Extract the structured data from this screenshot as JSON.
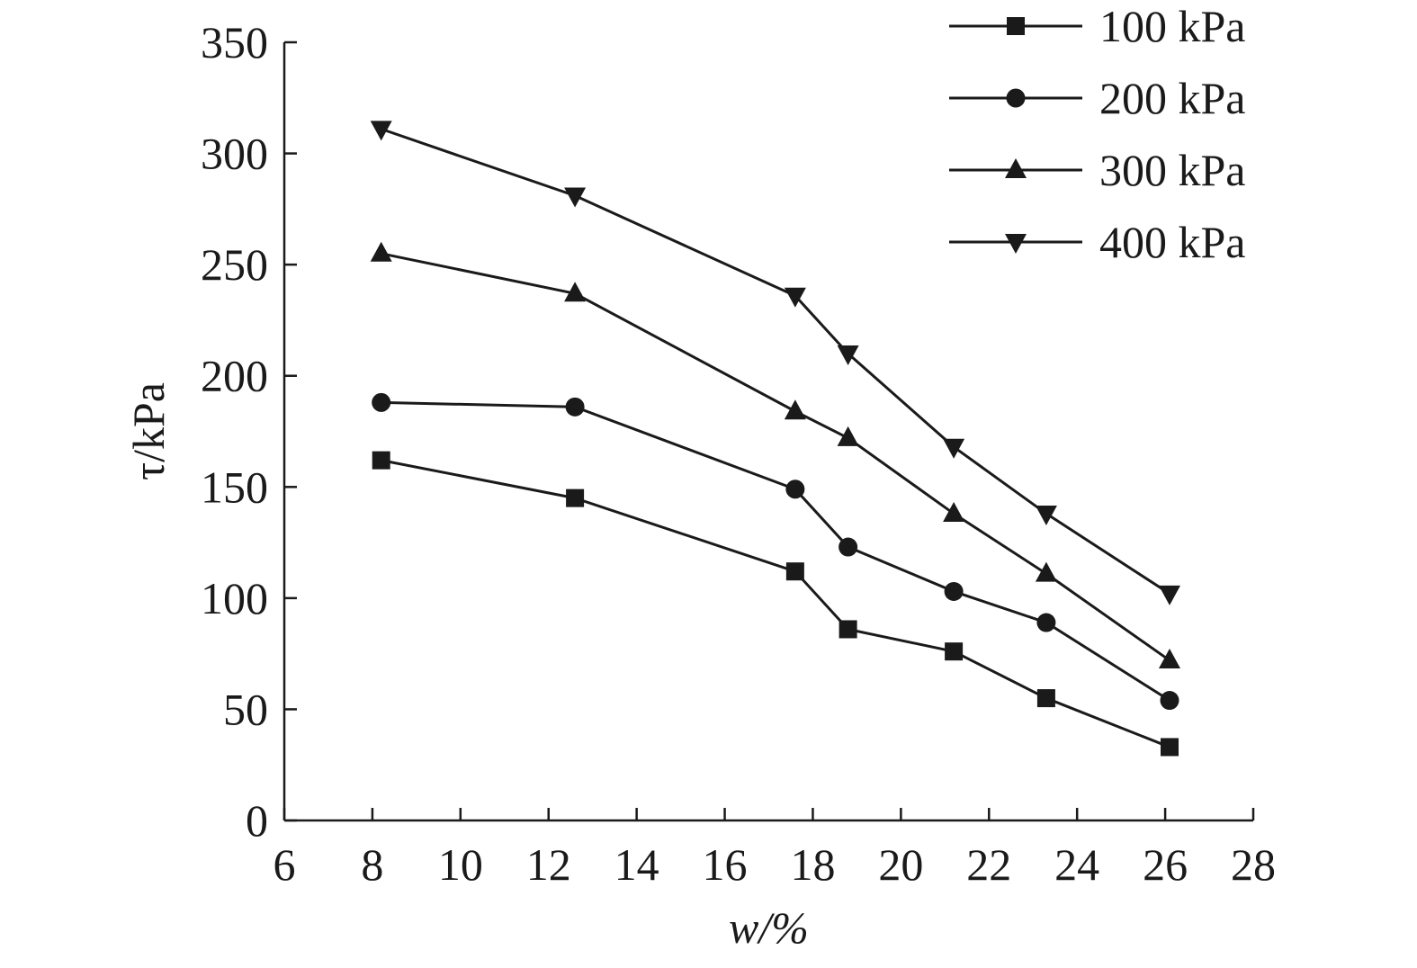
{
  "chart_data": {
    "type": "line",
    "xlabel": "w/%",
    "ylabel": "τ/kPa",
    "xlim": [
      6,
      28
    ],
    "ylim": [
      0,
      350
    ],
    "x_ticks": [
      6,
      8,
      10,
      12,
      14,
      16,
      18,
      20,
      22,
      24,
      26,
      28
    ],
    "y_ticks": [
      0,
      50,
      100,
      150,
      200,
      250,
      300,
      350
    ],
    "x": [
      8.2,
      12.6,
      17.6,
      18.8,
      21.2,
      23.3,
      26.1
    ],
    "grid": false,
    "legend_position": "top-right",
    "series": [
      {
        "name": "100 kPa",
        "marker": "square",
        "color": "#1a1a1a",
        "values": [
          162,
          145,
          112,
          86,
          76,
          55,
          33
        ]
      },
      {
        "name": "200 kPa",
        "marker": "circle",
        "color": "#1a1a1a",
        "values": [
          188,
          186,
          149,
          123,
          103,
          89,
          54
        ]
      },
      {
        "name": "300 kPa",
        "marker": "triangle-up",
        "color": "#1a1a1a",
        "values": [
          255,
          237,
          184,
          172,
          138,
          111,
          72
        ]
      },
      {
        "name": "400 kPa",
        "marker": "triangle-down",
        "color": "#1a1a1a",
        "values": [
          311,
          281,
          236,
          210,
          168,
          138,
          102
        ]
      }
    ]
  }
}
